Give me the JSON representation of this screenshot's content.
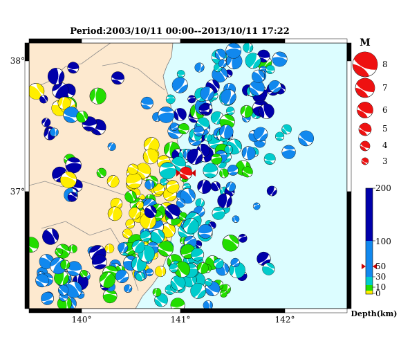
{
  "title": "Period:2003/10/11 00:00--2013/10/11 17:22",
  "map": {
    "lon_range": [
      139.6,
      142.6
    ],
    "lat_range": [
      36.1,
      38.1
    ],
    "lon_ticks": [
      {
        "value": 140,
        "label": "140°"
      },
      {
        "value": 141,
        "label": "141°"
      },
      {
        "value": 142,
        "label": "142°"
      }
    ],
    "lat_ticks": [
      {
        "value": 38,
        "label": "38°"
      },
      {
        "value": 37,
        "label": "37°"
      }
    ],
    "land_color": "#fde9cf",
    "sea_color": "#dcfdff"
  },
  "legend_magnitude": {
    "title": "M",
    "entries": [
      {
        "m": 8,
        "label": "8"
      },
      {
        "m": 7,
        "label": "7"
      },
      {
        "m": 6,
        "label": "6"
      },
      {
        "m": 5,
        "label": "5"
      },
      {
        "m": 4,
        "label": "4"
      },
      {
        "m": 3,
        "label": "3"
      }
    ]
  },
  "legend_depth": {
    "label": "Depth(km)",
    "ticks": [
      {
        "value": 200,
        "label": "200"
      },
      {
        "value": 100,
        "label": "100"
      },
      {
        "value": 50,
        "label": "50"
      },
      {
        "value": 30,
        "label": "30"
      },
      {
        "value": 10,
        "label": "10"
      },
      {
        "value": 0,
        "label": "0"
      }
    ],
    "colors": {
      "shallow": "#ffee00",
      "mid_shallow": "#22dd00",
      "mid": "#00cccc",
      "deep": "#1188ee",
      "very_deep": "#0000aa"
    },
    "marker_depth": 40
  },
  "latest_event": {
    "lon": 141.08,
    "lat": 37.12,
    "m": 5.5,
    "color": "#ee1111"
  }
}
